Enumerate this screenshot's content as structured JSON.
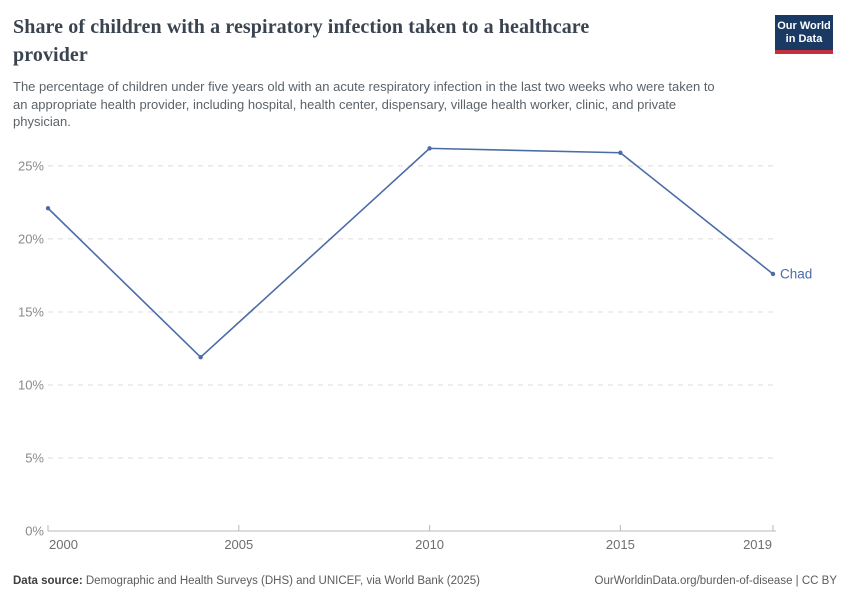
{
  "header": {
    "title": "Share of children with a respiratory infection taken to a healthcare provider",
    "title_lines": [
      "Share of children with a respiratory infection taken to a healthcare",
      "provider"
    ],
    "subtitle": "The percentage of children under five years old with an acute respiratory infection in the last two weeks who were taken to an appropriate health provider, including hospital, health center, dispensary, village health worker, clinic, and private physician.",
    "subtitle_lines": [
      "The percentage of children under five years old with an acute respiratory infection in the last two weeks who were taken to",
      "an appropriate health provider, including hospital, health center, dispensary, village health worker, clinic, and private",
      "physician."
    ],
    "logo": {
      "line1": "Our World",
      "line2": "in Data"
    }
  },
  "chart_data": {
    "type": "line",
    "title": "Share of children with a respiratory infection taken to a healthcare provider",
    "x": [
      2000,
      2004,
      2010,
      2015,
      2019
    ],
    "series": [
      {
        "name": "Chad",
        "color": "#4C6CA8",
        "values": [
          22.1,
          11.9,
          26.2,
          25.9,
          17.6
        ]
      }
    ],
    "xlabel": "",
    "ylabel": "",
    "xlim": [
      2000,
      2019
    ],
    "ylim": [
      0,
      26.5
    ],
    "x_ticks": [
      2000,
      2005,
      2010,
      2015,
      2019
    ],
    "y_ticks": [
      0,
      5,
      10,
      15,
      20,
      25
    ],
    "y_tick_suffix": "%",
    "grid": "horizontal-dashed",
    "legend_position": "line-end-label"
  },
  "footer": {
    "datasource_bold": "Data source:",
    "datasource_rest": " Demographic and Health Surveys (DHS) and UNICEF, via World Bank (2025)",
    "credit": "OurWorldinData.org/burden-of-disease | CC BY"
  },
  "colors": {
    "line": "#4C6CA8",
    "series_label": "#4C6CA8",
    "logo_navy": "#1A3A63",
    "logo_red": "#C5303E",
    "grid": "#DCDCDC",
    "axis": "#B9B9B9",
    "y_tick_label": "#8A8A8A",
    "x_tick_label": "#6E6E6E"
  }
}
